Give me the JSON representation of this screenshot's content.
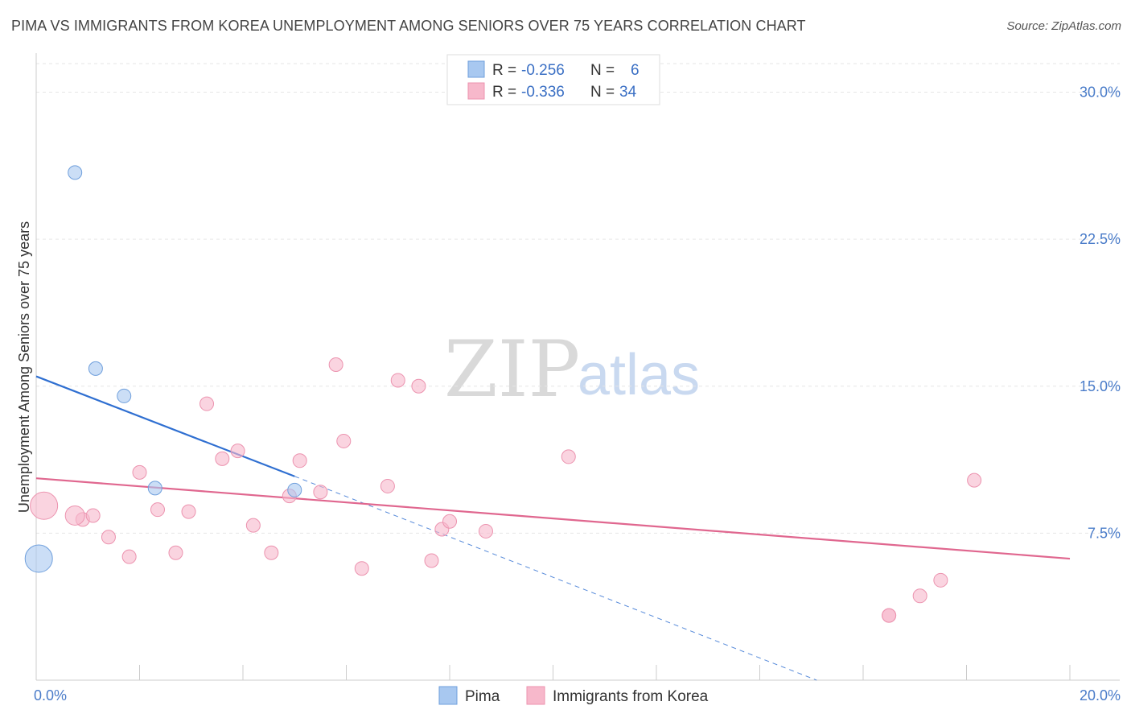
{
  "title": "PIMA VS IMMIGRANTS FROM KOREA UNEMPLOYMENT AMONG SENIORS OVER 75 YEARS CORRELATION CHART",
  "source": "Source: ZipAtlas.com",
  "watermark": {
    "zip": "ZIP",
    "atlas": "atlas"
  },
  "legend": {
    "rows": [
      {
        "r_label": "R = ",
        "r_value": "-0.256",
        "n_label": "N = ",
        "n_value": "6",
        "color": "#a8c8f0"
      },
      {
        "r_label": "R = ",
        "r_value": "-0.336",
        "n_label": "N = ",
        "n_value": "34",
        "color": "#f7b8cb"
      }
    ]
  },
  "bottom_legend": [
    {
      "label": "Pima",
      "color": "#a8c8f0"
    },
    {
      "label": "Immigrants from Korea",
      "color": "#f7b8cb"
    }
  ],
  "chart_data": {
    "type": "scatter",
    "title": "PIMA VS IMMIGRANTS FROM KOREA UNEMPLOYMENT AMONG SENIORS OVER 75 YEARS CORRELATION CHART",
    "xlabel": "",
    "ylabel": "Unemployment Among Seniors over 75 years",
    "xlim": [
      0,
      20
    ],
    "ylim": [
      0,
      31.5
    ],
    "x_tick_labels": [
      {
        "value": 0,
        "label": "0.0%"
      },
      {
        "value": 20,
        "label": "20.0%"
      }
    ],
    "y_tick_labels": [
      {
        "value": 7.5,
        "label": "7.5%"
      },
      {
        "value": 15,
        "label": "15.0%"
      },
      {
        "value": 22.5,
        "label": "22.5%"
      },
      {
        "value": 30,
        "label": "30.0%"
      }
    ],
    "grid": true,
    "series": [
      {
        "name": "Pima",
        "color": "#a8c8f0",
        "stroke": "#6f9fdc",
        "points": [
          {
            "x": 0.05,
            "y": 6.2,
            "size": "large"
          },
          {
            "x": 0.75,
            "y": 25.9
          },
          {
            "x": 1.15,
            "y": 15.9
          },
          {
            "x": 1.7,
            "y": 14.5
          },
          {
            "x": 2.3,
            "y": 9.8
          },
          {
            "x": 5.0,
            "y": 9.7
          }
        ],
        "trend": {
          "x0": 0,
          "y0": 15.5,
          "x1": 5.0,
          "y1": 10.4,
          "color": "#2f6fd1"
        },
        "trend_extension": {
          "x0": 5.0,
          "y0": 10.4,
          "x1": 15.1,
          "y1": 0
        }
      },
      {
        "name": "Immigrants from Korea",
        "color": "#f7b8cb",
        "stroke": "#ec93af",
        "points": [
          {
            "x": 0.15,
            "y": 8.9,
            "size": "large"
          },
          {
            "x": 0.9,
            "y": 8.2
          },
          {
            "x": 0.75,
            "y": 8.4,
            "size": "medium"
          },
          {
            "x": 1.1,
            "y": 8.4
          },
          {
            "x": 1.4,
            "y": 7.3
          },
          {
            "x": 1.8,
            "y": 6.3
          },
          {
            "x": 2.0,
            "y": 10.6
          },
          {
            "x": 2.35,
            "y": 8.7
          },
          {
            "x": 2.7,
            "y": 6.5
          },
          {
            "x": 2.95,
            "y": 8.6
          },
          {
            "x": 3.3,
            "y": 14.1
          },
          {
            "x": 3.6,
            "y": 11.3
          },
          {
            "x": 3.9,
            "y": 11.7
          },
          {
            "x": 4.2,
            "y": 7.9
          },
          {
            "x": 4.55,
            "y": 6.5
          },
          {
            "x": 4.9,
            "y": 9.4
          },
          {
            "x": 5.1,
            "y": 11.2
          },
          {
            "x": 5.5,
            "y": 9.6
          },
          {
            "x": 5.8,
            "y": 16.1
          },
          {
            "x": 5.95,
            "y": 12.2
          },
          {
            "x": 6.3,
            "y": 5.7
          },
          {
            "x": 6.8,
            "y": 9.9
          },
          {
            "x": 7.0,
            "y": 15.3
          },
          {
            "x": 7.4,
            "y": 15.0
          },
          {
            "x": 7.65,
            "y": 6.1
          },
          {
            "x": 7.85,
            "y": 7.7
          },
          {
            "x": 8.0,
            "y": 8.1
          },
          {
            "x": 8.7,
            "y": 7.6
          },
          {
            "x": 10.3,
            "y": 11.4
          },
          {
            "x": 16.5,
            "y": 3.3
          },
          {
            "x": 16.5,
            "y": 3.3
          },
          {
            "x": 17.1,
            "y": 4.3
          },
          {
            "x": 17.5,
            "y": 5.1
          },
          {
            "x": 18.15,
            "y": 10.2
          }
        ],
        "trend": {
          "x0": 0,
          "y0": 10.3,
          "x1": 20,
          "y1": 6.2,
          "color": "#e0678f"
        }
      }
    ]
  }
}
